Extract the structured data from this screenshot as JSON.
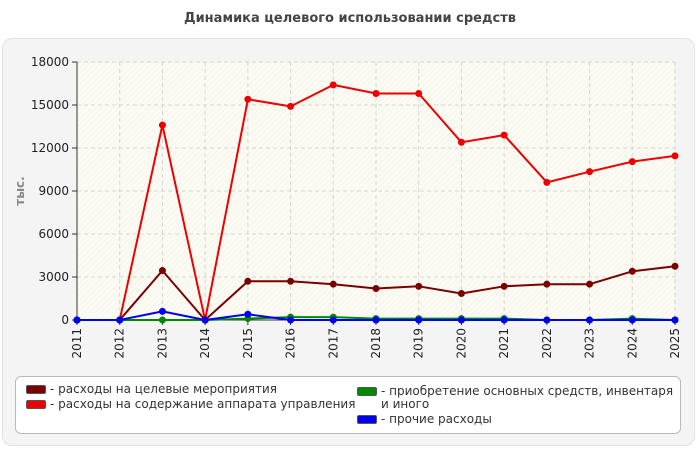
{
  "chart_data": {
    "type": "line",
    "title": "Динамика целевого использовании средств",
    "ylabel": "тыс.",
    "xlabel": "",
    "x": [
      "2011",
      "2012",
      "2013",
      "2014",
      "2015",
      "2016",
      "2017",
      "2018",
      "2019",
      "2020",
      "2021",
      "2022",
      "2023",
      "2024",
      "2025"
    ],
    "ylim": [
      0,
      18000
    ],
    "yticks": [
      "0",
      "3000",
      "6000",
      "9000",
      "12000",
      "15000",
      "18000"
    ],
    "grid": true,
    "legend_position": "bottom",
    "series": [
      {
        "name": "- расходы на целевые мероприятия",
        "color": "#7a0000",
        "values": [
          0,
          0,
          3450,
          0,
          2700,
          2700,
          2500,
          2200,
          2350,
          1850,
          2350,
          2500,
          2500,
          3400,
          3750
        ]
      },
      {
        "name": "- расходы на содержание аппарата управления",
        "color": "#ee0000",
        "values": [
          0,
          0,
          13600,
          0,
          15400,
          14900,
          16400,
          15800,
          15800,
          12400,
          12900,
          9600,
          10350,
          11050,
          11450
        ]
      },
      {
        "name": "- приобретение основных средств, инвентаря и иного",
        "color": "#008800",
        "values": [
          0,
          0,
          0,
          0,
          100,
          200,
          200,
          100,
          100,
          100,
          100,
          0,
          0,
          100,
          0
        ]
      },
      {
        "name": "- прочие расходы",
        "color": "#0000ee",
        "values": [
          0,
          0,
          600,
          0,
          400,
          0,
          0,
          0,
          0,
          0,
          0,
          0,
          0,
          0,
          0
        ]
      }
    ]
  }
}
